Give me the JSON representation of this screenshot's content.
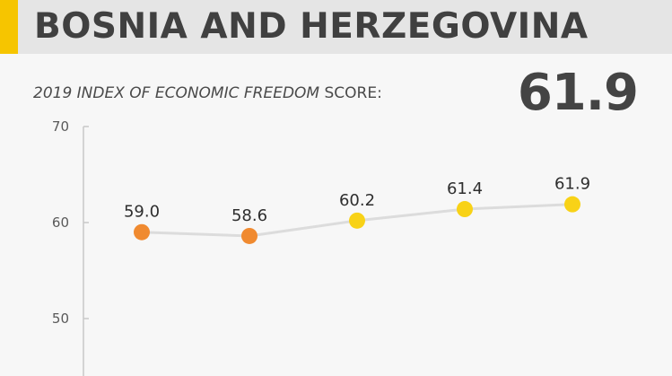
{
  "header": {
    "country": "BOSNIA AND HERZEGOVINA",
    "accent_color": "#f6c500",
    "score_caption_italic": "2019 INDEX OF ECONOMIC FREEDOM",
    "score_caption_rest": " SCORE:",
    "score_value": "61.9"
  },
  "chart_data": {
    "type": "line",
    "title": "",
    "xlabel": "",
    "ylabel": "",
    "ylim": [
      45,
      70
    ],
    "yticks": [
      70,
      60,
      50
    ],
    "grid": false,
    "line_color": "#dcdcdc",
    "axis_color": "#c8c8c8",
    "series": [
      {
        "values": [
          59.0,
          58.6,
          60.2,
          61.4,
          61.9
        ],
        "labels": [
          "59.0",
          "58.6",
          "60.2",
          "61.4",
          "61.9"
        ],
        "point_colors": [
          "#f08a30",
          "#f08a30",
          "#f8d217",
          "#f8d217",
          "#f8d217"
        ]
      }
    ]
  }
}
